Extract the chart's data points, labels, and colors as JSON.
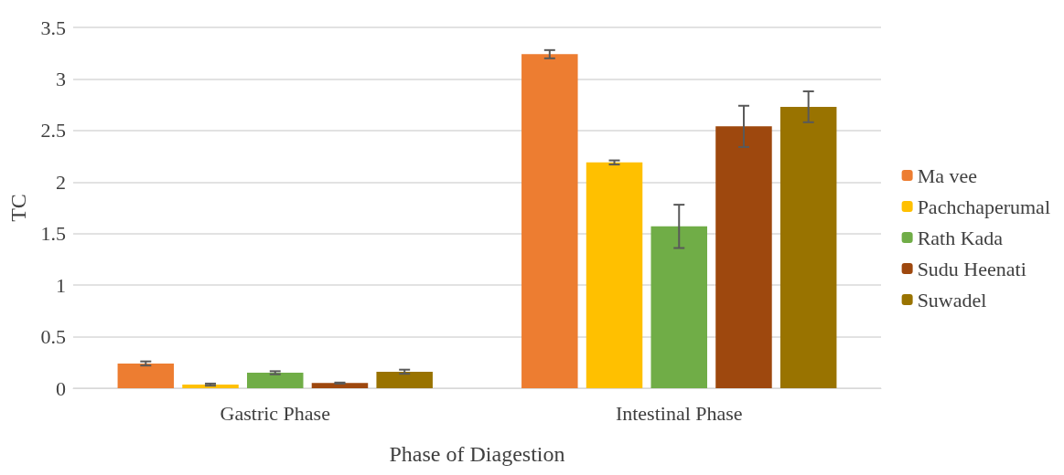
{
  "chart_data": {
    "type": "bar",
    "xlabel": "Phase of Diagestion",
    "ylabel": "TC",
    "categories": [
      "Gastric Phase",
      "Intestinal Phase"
    ],
    "series": [
      {
        "name": "Ma vee",
        "color": "#ed7d31",
        "values": [
          0.24,
          3.24
        ],
        "errors": [
          0.02,
          0.04
        ]
      },
      {
        "name": "Pachchaperumal",
        "color": "#ffc000",
        "values": [
          0.035,
          2.19
        ],
        "errors": [
          0.01,
          0.02
        ]
      },
      {
        "name": "Rath Kada",
        "color": "#70ad47",
        "values": [
          0.15,
          1.57
        ],
        "errors": [
          0.015,
          0.21
        ]
      },
      {
        "name": "Sudu Heenati",
        "color": "#9e480e",
        "values": [
          0.05,
          2.54
        ],
        "errors": [
          0.005,
          0.2
        ]
      },
      {
        "name": "Suwadel",
        "color": "#997300",
        "values": [
          0.16,
          2.73
        ],
        "errors": [
          0.02,
          0.15
        ]
      }
    ],
    "ylim": [
      0,
      3.5
    ],
    "yticks": [
      0,
      0.5,
      1,
      1.5,
      2,
      2.5,
      3,
      3.5
    ],
    "grid": "y",
    "legend": "right"
  }
}
